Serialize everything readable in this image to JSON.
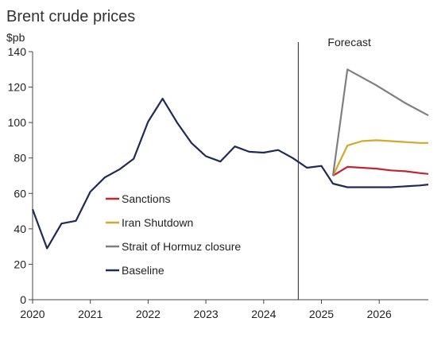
{
  "chart_data": {
    "type": "line",
    "title": "Brent crude prices",
    "ylabel": "$pb",
    "xlabel": "",
    "ylim": [
      0,
      140
    ],
    "yticks": [
      0,
      20,
      40,
      60,
      80,
      100,
      120,
      140
    ],
    "xlim": [
      2020.0,
      2026.85
    ],
    "xticks": [
      2020,
      2021,
      2022,
      2023,
      2024,
      2025,
      2026
    ],
    "forecast_label": "Forecast",
    "forecast_start": 2024.6,
    "grid": false,
    "legend_placement": "left",
    "series": [
      {
        "name": "Sanctions",
        "color": "#c0272d",
        "x": [
          2025.2,
          2025.45,
          2025.7,
          2025.95,
          2026.2,
          2026.45,
          2026.7,
          2026.85
        ],
        "values": [
          70,
          75,
          74.5,
          74,
          73,
          72.5,
          71.5,
          71
        ]
      },
      {
        "name": "Iran Shutdown",
        "color": "#d4a82a",
        "x": [
          2025.2,
          2025.45,
          2025.7,
          2025.95,
          2026.2,
          2026.45,
          2026.7,
          2026.85
        ],
        "values": [
          70,
          87,
          89.5,
          90,
          89.5,
          89,
          88.5,
          88.5
        ]
      },
      {
        "name": "Strait of Hormuz closure",
        "color": "#7f7f7f",
        "x": [
          2025.2,
          2025.45,
          2025.95,
          2026.45,
          2026.85
        ],
        "values": [
          70,
          130,
          121,
          111,
          104
        ]
      },
      {
        "name": "Baseline",
        "color": "#1f2a55",
        "x": [
          2020.0,
          2020.25,
          2020.5,
          2020.75,
          2021.0,
          2021.25,
          2021.5,
          2021.75,
          2022.0,
          2022.25,
          2022.5,
          2022.75,
          2023.0,
          2023.25,
          2023.5,
          2023.75,
          2024.0,
          2024.25,
          2024.5,
          2024.75,
          2025.0,
          2025.2,
          2025.45,
          2025.7,
          2025.95,
          2026.2,
          2026.45,
          2026.7,
          2026.85
        ],
        "values": [
          51,
          29,
          43,
          44.5,
          61,
          69,
          73.5,
          79.5,
          100.5,
          113.5,
          100,
          88.5,
          81,
          78,
          86.5,
          83.5,
          83,
          84.5,
          80,
          74.5,
          75.5,
          65.5,
          63.5,
          63.5,
          63.5,
          63.5,
          64,
          64.5,
          65
        ]
      }
    ]
  }
}
